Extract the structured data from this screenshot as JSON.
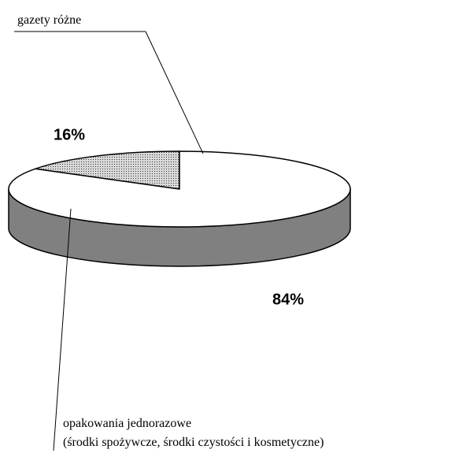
{
  "chart_data": {
    "type": "pie3d",
    "categories": [
      "gazety różne",
      "opakowania jednorazowe\n(środki spożywcze, środki czystości i kosmetyczne)"
    ],
    "values": [
      16,
      84
    ],
    "value_labels": [
      "16%",
      "84%"
    ],
    "colors": [
      "#d9d9d9",
      "#ffffff"
    ],
    "side_color": "#808080"
  }
}
